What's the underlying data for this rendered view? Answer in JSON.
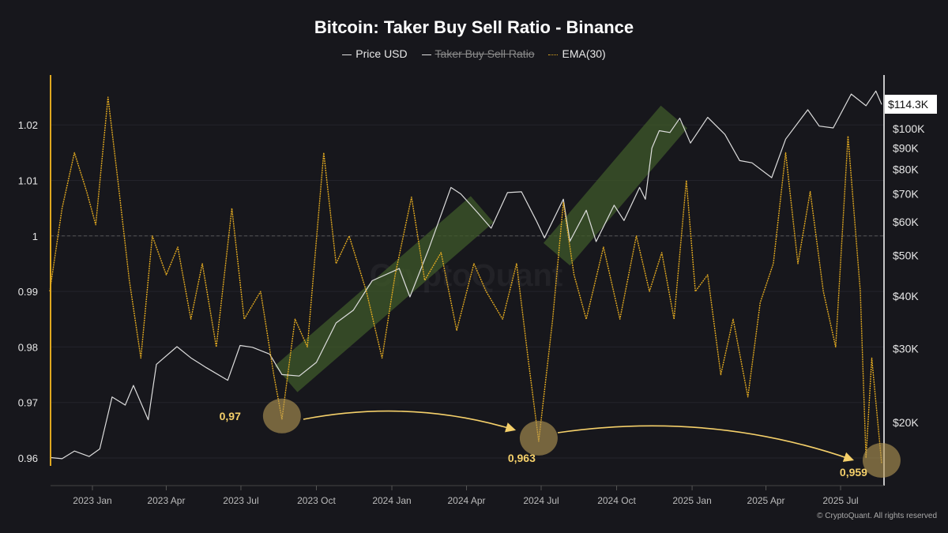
{
  "chart_data": {
    "type": "line",
    "title": "Bitcoin: Taker Buy Sell Ratio - Binance",
    "legend": [
      {
        "name": "Price USD",
        "color": "#dddddd",
        "hidden": false
      },
      {
        "name": "Taker Buy Sell Ratio",
        "color": "#dddddd",
        "hidden": true
      },
      {
        "name": "EMA(30)",
        "color": "#e0a820",
        "hidden": false
      }
    ],
    "legend_placement": "top-center",
    "x_ticks": [
      "2023 Jan",
      "2023 Apr",
      "2023 Jul",
      "2023 Oct",
      "2024 Jan",
      "2024 Apr",
      "2024 Jul",
      "2024 Oct",
      "2025 Jan",
      "2025 Apr",
      "2025 Jul"
    ],
    "x_tick_dates": [
      "2023-01-01",
      "2023-04-01",
      "2023-07-01",
      "2023-10-01",
      "2024-01-01",
      "2024-04-01",
      "2024-07-01",
      "2024-10-01",
      "2025-01-01",
      "2025-04-01",
      "2025-07-01"
    ],
    "left_axis": {
      "ticks": [
        "0.96",
        "0.97",
        "0.98",
        "0.99",
        "1",
        "1.01",
        "1.02"
      ],
      "range": [
        0.957,
        1.0285
      ],
      "reference_line": 1,
      "color": "#e0a820"
    },
    "right_axis": {
      "scale": "log",
      "ticks": [
        {
          "label": "$20K",
          "v": 20000
        },
        {
          "label": "$30K",
          "v": 30000
        },
        {
          "label": "$40K",
          "v": 40000
        },
        {
          "label": "$50K",
          "v": 50000
        },
        {
          "label": "$60K",
          "v": 60000
        },
        {
          "label": "$70K",
          "v": 70000
        },
        {
          "label": "$80K",
          "v": 80000
        },
        {
          "label": "$90K",
          "v": 90000
        },
        {
          "label": "$100K",
          "v": 100000
        }
      ],
      "current_label": "$114.3K"
    },
    "series": [
      {
        "name": "Price USD",
        "axis": "right",
        "color": "#dddddd",
        "points": [
          [
            "2022-11-10",
            16500
          ],
          [
            "2022-11-25",
            16400
          ],
          [
            "2022-12-10",
            17100
          ],
          [
            "2022-12-28",
            16600
          ],
          [
            "2023-01-10",
            17300
          ],
          [
            "2023-01-25",
            23000
          ],
          [
            "2023-02-10",
            22000
          ],
          [
            "2023-02-20",
            24500
          ],
          [
            "2023-03-10",
            20300
          ],
          [
            "2023-03-20",
            27500
          ],
          [
            "2023-04-14",
            30300
          ],
          [
            "2023-05-01",
            28500
          ],
          [
            "2023-05-20",
            27000
          ],
          [
            "2023-06-15",
            25200
          ],
          [
            "2023-06-30",
            30500
          ],
          [
            "2023-07-15",
            30200
          ],
          [
            "2023-08-05",
            29100
          ],
          [
            "2023-08-20",
            26000
          ],
          [
            "2023-09-10",
            25800
          ],
          [
            "2023-10-01",
            27800
          ],
          [
            "2023-10-25",
            34500
          ],
          [
            "2023-11-15",
            37000
          ],
          [
            "2023-12-08",
            43500
          ],
          [
            "2024-01-10",
            46500
          ],
          [
            "2024-01-23",
            39800
          ],
          [
            "2024-02-15",
            51800
          ],
          [
            "2024-03-13",
            72500
          ],
          [
            "2024-03-25",
            70000
          ],
          [
            "2024-04-15",
            63000
          ],
          [
            "2024-05-01",
            58000
          ],
          [
            "2024-05-21",
            70500
          ],
          [
            "2024-06-07",
            70800
          ],
          [
            "2024-06-25",
            60500
          ],
          [
            "2024-07-05",
            55000
          ],
          [
            "2024-07-28",
            68000
          ],
          [
            "2024-08-05",
            54000
          ],
          [
            "2024-08-25",
            64000
          ],
          [
            "2024-09-06",
            53900
          ],
          [
            "2024-09-28",
            65800
          ],
          [
            "2024-10-10",
            60500
          ],
          [
            "2024-10-29",
            72500
          ],
          [
            "2024-11-05",
            68000
          ],
          [
            "2024-11-13",
            90000
          ],
          [
            "2024-11-22",
            99000
          ],
          [
            "2024-12-05",
            98000
          ],
          [
            "2024-12-17",
            106000
          ],
          [
            "2024-12-30",
            92500
          ],
          [
            "2025-01-20",
            106500
          ],
          [
            "2025-02-10",
            97000
          ],
          [
            "2025-02-28",
            84000
          ],
          [
            "2025-03-15",
            83000
          ],
          [
            "2025-04-08",
            76500
          ],
          [
            "2025-04-25",
            94500
          ],
          [
            "2025-05-22",
            111000
          ],
          [
            "2025-06-05",
            101500
          ],
          [
            "2025-06-22",
            100500
          ],
          [
            "2025-07-14",
            121000
          ],
          [
            "2025-08-01",
            113500
          ],
          [
            "2025-08-13",
            123000
          ],
          [
            "2025-08-20",
            114300
          ]
        ]
      },
      {
        "name": "EMA(30)",
        "axis": "left",
        "color": "#e0a820",
        "points": [
          [
            "2022-11-10",
            0.99
          ],
          [
            "2022-11-25",
            1.005
          ],
          [
            "2022-12-10",
            1.015
          ],
          [
            "2022-12-25",
            1.008
          ],
          [
            "2023-01-05",
            1.002
          ],
          [
            "2023-01-20",
            1.025
          ],
          [
            "2023-02-01",
            1.01
          ],
          [
            "2023-02-15",
            0.992
          ],
          [
            "2023-03-01",
            0.978
          ],
          [
            "2023-03-15",
            1.0
          ],
          [
            "2023-04-01",
            0.993
          ],
          [
            "2023-04-15",
            0.998
          ],
          [
            "2023-05-01",
            0.985
          ],
          [
            "2023-05-15",
            0.995
          ],
          [
            "2023-06-01",
            0.98
          ],
          [
            "2023-06-20",
            1.005
          ],
          [
            "2023-07-05",
            0.985
          ],
          [
            "2023-07-25",
            0.99
          ],
          [
            "2023-08-10",
            0.975
          ],
          [
            "2023-08-20",
            0.967
          ],
          [
            "2023-09-05",
            0.985
          ],
          [
            "2023-09-20",
            0.98
          ],
          [
            "2023-10-10",
            1.015
          ],
          [
            "2023-10-25",
            0.995
          ],
          [
            "2023-11-10",
            1.0
          ],
          [
            "2023-12-01",
            0.99
          ],
          [
            "2023-12-20",
            0.978
          ],
          [
            "2024-01-05",
            0.993
          ],
          [
            "2024-01-25",
            1.007
          ],
          [
            "2024-02-10",
            0.992
          ],
          [
            "2024-03-01",
            0.997
          ],
          [
            "2024-03-20",
            0.983
          ],
          [
            "2024-04-10",
            0.995
          ],
          [
            "2024-04-25",
            0.99
          ],
          [
            "2024-05-15",
            0.985
          ],
          [
            "2024-06-01",
            0.995
          ],
          [
            "2024-06-15",
            0.978
          ],
          [
            "2024-06-28",
            0.963
          ],
          [
            "2024-07-15",
            0.985
          ],
          [
            "2024-07-28",
            1.006
          ],
          [
            "2024-08-10",
            0.993
          ],
          [
            "2024-08-25",
            0.985
          ],
          [
            "2024-09-15",
            0.998
          ],
          [
            "2024-10-05",
            0.985
          ],
          [
            "2024-10-25",
            1.0
          ],
          [
            "2024-11-10",
            0.99
          ],
          [
            "2024-11-25",
            0.997
          ],
          [
            "2024-12-10",
            0.985
          ],
          [
            "2024-12-25",
            1.01
          ],
          [
            "2025-01-05",
            0.99
          ],
          [
            "2025-01-20",
            0.993
          ],
          [
            "2025-02-05",
            0.975
          ],
          [
            "2025-02-20",
            0.985
          ],
          [
            "2025-03-10",
            0.971
          ],
          [
            "2025-03-25",
            0.988
          ],
          [
            "2025-04-10",
            0.995
          ],
          [
            "2025-04-25",
            1.015
          ],
          [
            "2025-05-10",
            0.995
          ],
          [
            "2025-05-25",
            1.008
          ],
          [
            "2025-06-10",
            0.99
          ],
          [
            "2025-06-25",
            0.98
          ],
          [
            "2025-07-10",
            1.018
          ],
          [
            "2025-07-25",
            0.99
          ],
          [
            "2025-08-01",
            0.96
          ],
          [
            "2025-08-08",
            0.978
          ],
          [
            "2025-08-20",
            0.959
          ]
        ]
      }
    ],
    "annotations": [
      {
        "label": "0,97",
        "date": "2023-08-20",
        "value": 0.967
      },
      {
        "label": "0,963",
        "date": "2024-06-28",
        "value": 0.963
      },
      {
        "label": "0,959",
        "date": "2025-08-20",
        "value": 0.959
      }
    ],
    "trend_bands": [
      {
        "from": "2023-08-25",
        "to": "2024-04-20",
        "color": "#3f5a2a"
      },
      {
        "from": "2024-07-20",
        "to": "2024-12-10",
        "color": "#3f5a2a"
      }
    ],
    "grid": true,
    "watermark": "CryptoQuant"
  },
  "footer": "© CryptoQuant. All rights reserved"
}
